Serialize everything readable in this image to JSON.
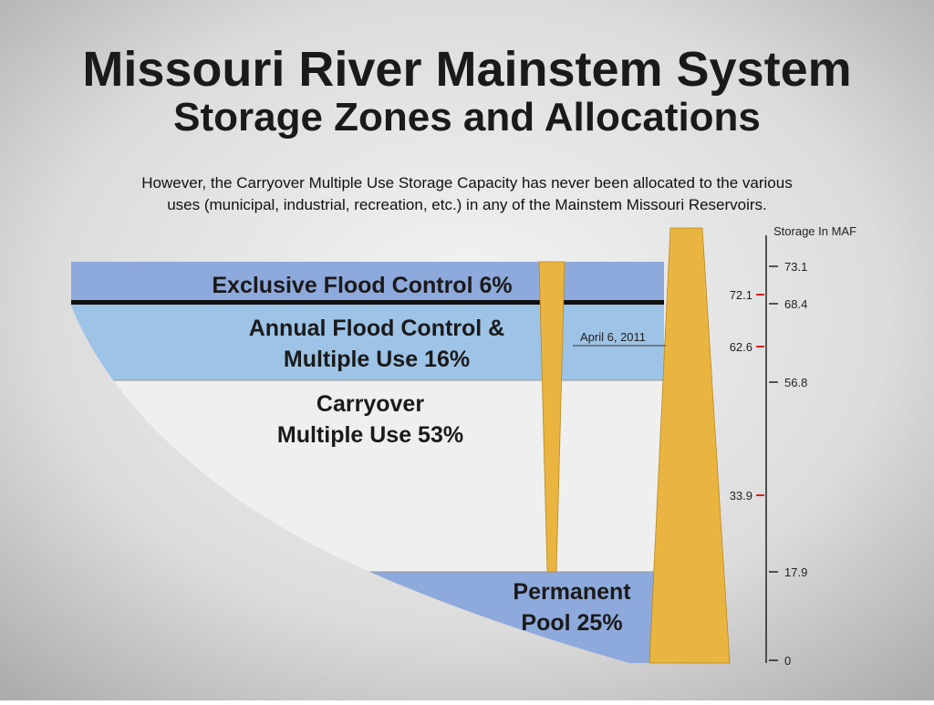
{
  "title": "Missouri River Mainstem System",
  "subtitle": "Storage Zones and Allocations",
  "note": [
    "However, the Carryover Multiple Use Storage Capacity has never been allocated to the various",
    "uses  (municipal, industrial, recreation, etc.) in any of the Mainstem Missouri Reservoirs."
  ],
  "zones": [
    {
      "lines": [
        "Exclusive Flood Control 6%"
      ]
    },
    {
      "lines": [
        "Annual Flood Control &",
        "Multiple Use 16%"
      ]
    },
    {
      "lines": [
        "Carryover",
        "Multiple Use 53%"
      ]
    },
    {
      "lines": [
        "Permanent",
        "Pool 25%"
      ]
    }
  ],
  "marker_label": "April 6, 2011",
  "scale": {
    "title": "Storage In MAF",
    "ticks": [
      "73.1",
      "68.4",
      "56.8",
      "17.9",
      "0"
    ],
    "levels": [
      "72.1",
      "62.6",
      "33.9"
    ]
  }
}
